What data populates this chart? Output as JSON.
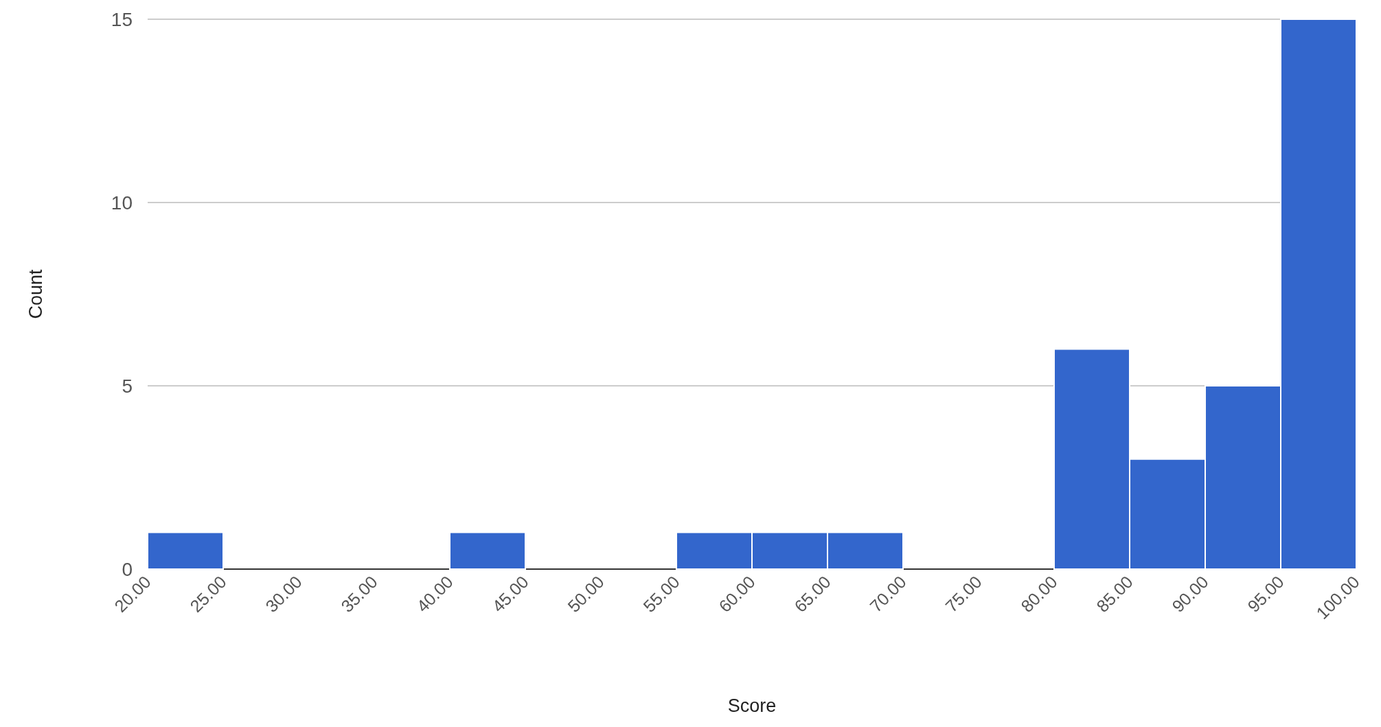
{
  "chart_data": {
    "type": "histogram",
    "xlabel": "Score",
    "ylabel": "Count",
    "color": "#3366cc",
    "bins": [
      20,
      25,
      30,
      35,
      40,
      45,
      50,
      55,
      60,
      65,
      70,
      75,
      80,
      85,
      90,
      95,
      100
    ],
    "values": [
      1,
      0,
      0,
      0,
      1,
      0,
      0,
      1,
      1,
      1,
      0,
      0,
      6,
      3,
      5,
      15
    ],
    "xlim": [
      20,
      100
    ],
    "xticks": [
      {
        "value": 20,
        "label": "20.00"
      },
      {
        "value": 25,
        "label": "25.00"
      },
      {
        "value": 30,
        "label": "30.00"
      },
      {
        "value": 35,
        "label": "35.00"
      },
      {
        "value": 40,
        "label": "40.00"
      },
      {
        "value": 45,
        "label": "45.00"
      },
      {
        "value": 50,
        "label": "50.00"
      },
      {
        "value": 55,
        "label": "55.00"
      },
      {
        "value": 60,
        "label": "60.00"
      },
      {
        "value": 65,
        "label": "65.00"
      },
      {
        "value": 70,
        "label": "70.00"
      },
      {
        "value": 75,
        "label": "75.00"
      },
      {
        "value": 80,
        "label": "80.00"
      },
      {
        "value": 85,
        "label": "85.00"
      },
      {
        "value": 90,
        "label": "90.00"
      },
      {
        "value": 95,
        "label": "95.00"
      },
      {
        "value": 100,
        "label": "100.00"
      }
    ],
    "ylim": [
      0,
      15
    ],
    "yticks": [
      0,
      5,
      10,
      15
    ],
    "grid": "y"
  }
}
